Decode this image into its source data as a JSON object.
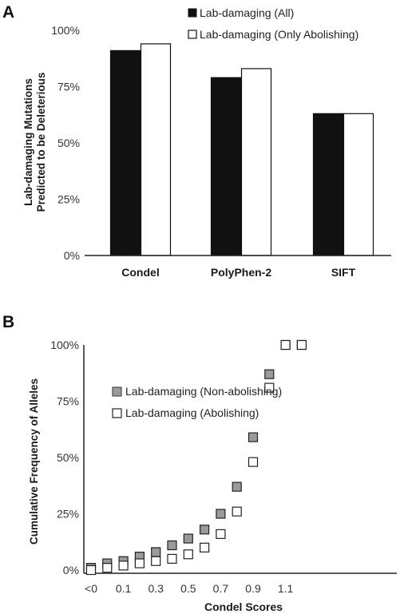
{
  "chart_data": [
    {
      "panel": "A",
      "type": "bar",
      "categories": [
        "Condel",
        "PolyPhen-2",
        "SIFT"
      ],
      "series": [
        {
          "name": "Lab-damaging (All)",
          "values": [
            91,
            79,
            63
          ],
          "color": "#111111"
        },
        {
          "name": "Lab-damaging (Only Abolishing)",
          "values": [
            94,
            83,
            63
          ],
          "color": "#ffffff"
        }
      ],
      "ylabel": [
        "Lab-damaging Mutations",
        "Predicted to be Deleterious"
      ],
      "ylim": [
        0,
        100
      ],
      "yticks": [
        "0%",
        "25%",
        "50%",
        "75%",
        "100%"
      ],
      "grid": false,
      "legend": "top-right"
    },
    {
      "panel": "B",
      "type": "scatter",
      "xlabel": "Condel Scores",
      "xticks": [
        "<0",
        "0.1",
        "0.3",
        "0.5",
        "0.7",
        "0.9",
        "1.1"
      ],
      "ylabel": "Cumulative Frequency of Alleles",
      "ylim": [
        0,
        100
      ],
      "yticks": [
        "0%",
        "25%",
        "50%",
        "75%",
        "100%"
      ],
      "grid": false,
      "legend": "upper-left",
      "series": [
        {
          "name": "Lab-damaging (Non-abolishing)",
          "color": "#9a9a9a",
          "values": [
            1,
            3,
            4,
            6,
            8,
            11,
            14,
            18,
            25,
            37,
            59,
            87,
            100,
            100
          ]
        },
        {
          "name": "Lab-damaging (Abolishing)",
          "color": "#ffffff",
          "values": [
            0,
            1,
            2,
            3,
            4,
            5,
            7,
            10,
            16,
            26,
            48,
            81,
            100,
            100
          ]
        }
      ]
    }
  ]
}
